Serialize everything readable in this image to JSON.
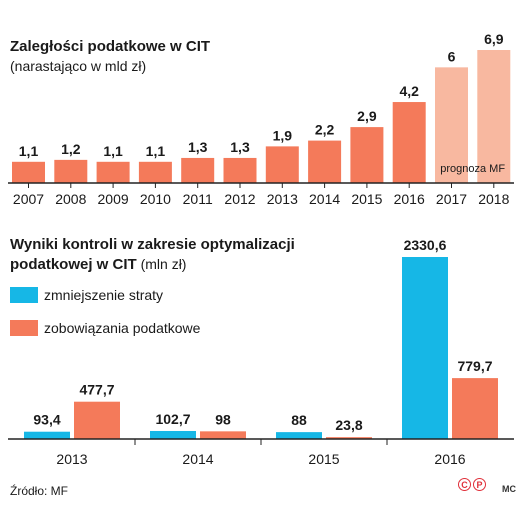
{
  "colors": {
    "orange": "#f47a5a",
    "orange_light": "#f8b8a0",
    "cyan": "#16b7e6",
    "axis": "#222222",
    "logo_red": "#e0303a"
  },
  "chart_data": [
    {
      "type": "bar",
      "title": "Zaległości podatkowe w CIT",
      "subtitle": "(narastająco w mld zł)",
      "categories": [
        "2007",
        "2008",
        "2009",
        "2010",
        "2011",
        "2012",
        "2013",
        "2014",
        "2015",
        "2016",
        "2017",
        "2018"
      ],
      "values": [
        1.1,
        1.2,
        1.1,
        1.1,
        1.3,
        1.3,
        1.9,
        2.2,
        2.9,
        4.2,
        6,
        6.9
      ],
      "value_labels": [
        "1,1",
        "1,2",
        "1,1",
        "1,1",
        "1,3",
        "1,3",
        "1,9",
        "2,2",
        "2,9",
        "4,2",
        "6",
        "6,9"
      ],
      "forecast_from_index": 10,
      "forecast_label": "prognoza MF",
      "ylim": [
        0,
        6.9
      ],
      "grid": false
    },
    {
      "type": "bar",
      "title_bold": "Wyniki kontroli w zakresie optymalizacji",
      "title_bold_line2": "podatkowej w CIT",
      "title_unit": " (mln zł)",
      "categories": [
        "2013",
        "2014",
        "2015",
        "2016"
      ],
      "series": [
        {
          "name": "zmniejszenie straty",
          "values": [
            93.4,
            102.7,
            88,
            2330.6
          ],
          "value_labels": [
            "93,4",
            "102,7",
            "88",
            "2330,6"
          ]
        },
        {
          "name": "zobowiązania podatkowe",
          "values": [
            477.7,
            98,
            23.8,
            779.7
          ],
          "value_labels": [
            "477,7",
            "98",
            "23,8",
            "779,7"
          ]
        }
      ],
      "ylim": [
        0,
        2330.6
      ],
      "legend_position": "top-left",
      "grid": false
    }
  ],
  "footer": {
    "source": "Źródło: MF",
    "logo_c": "C",
    "logo_p": "P",
    "logo_initials": "MC"
  }
}
